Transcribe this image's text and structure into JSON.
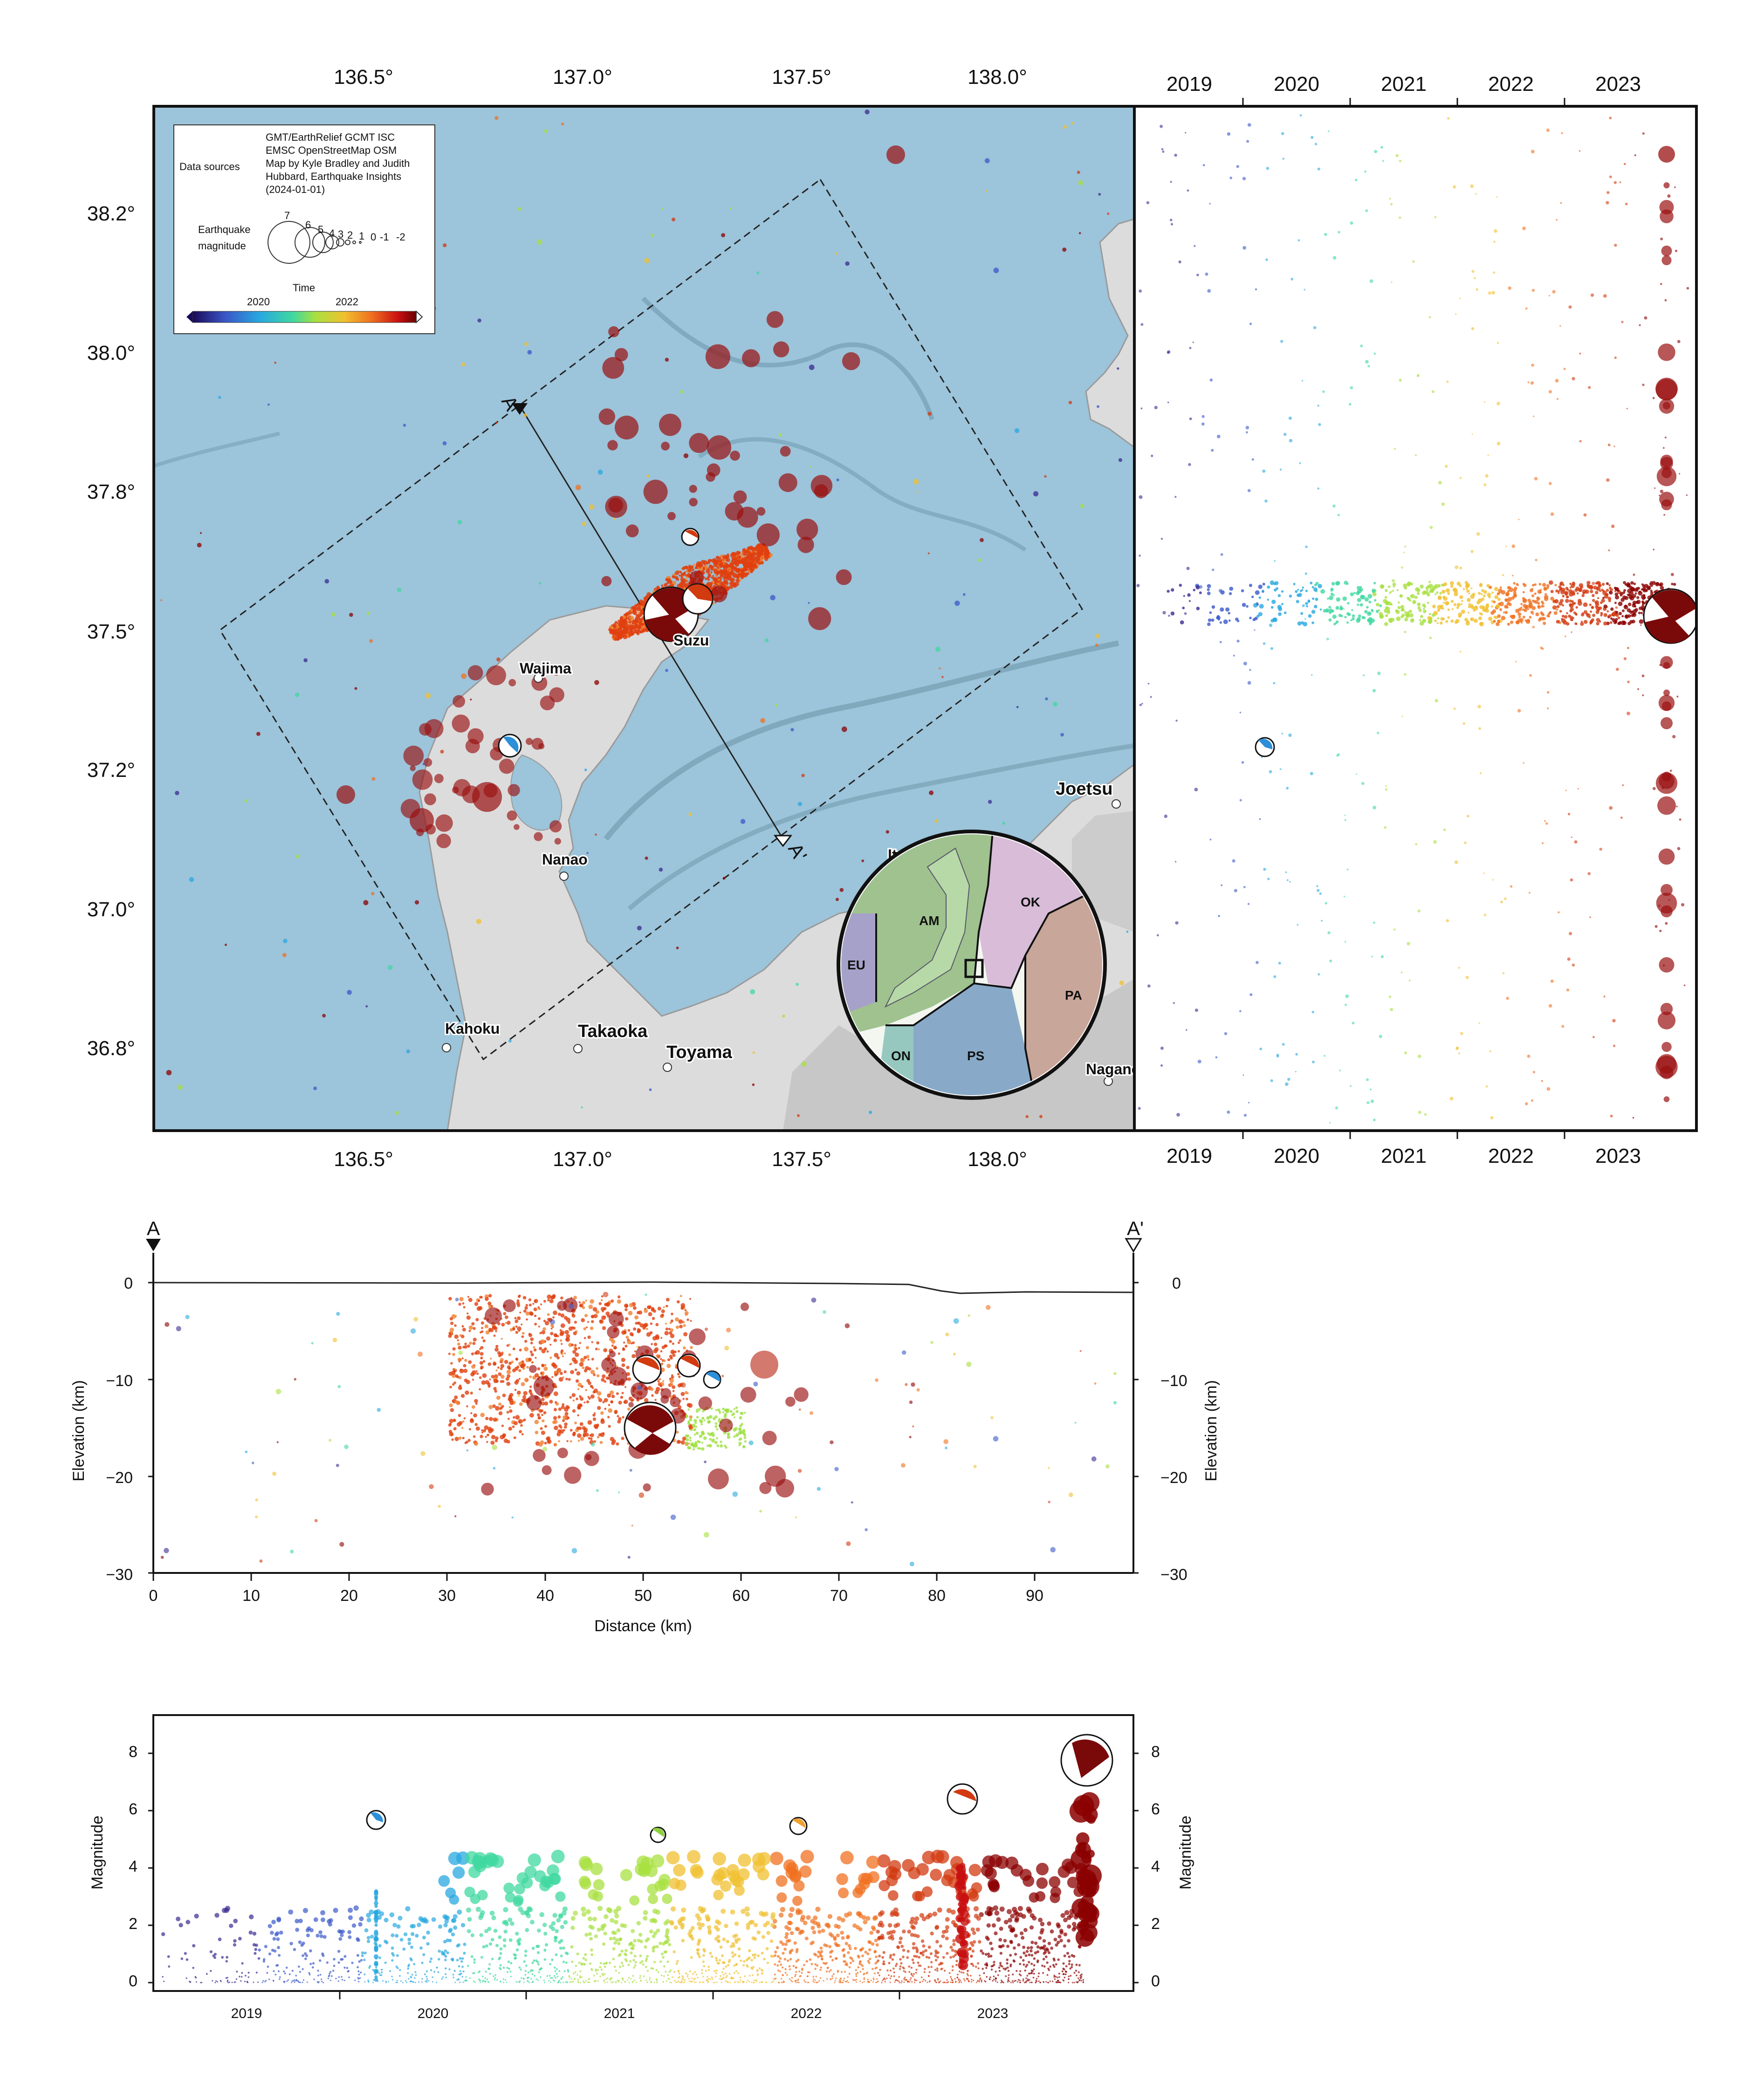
{
  "map": {
    "lon_ticks": [
      "136.5°",
      "137.0°",
      "137.5°",
      "138.0°"
    ],
    "lat_ticks": [
      "38.2°",
      "38.0°",
      "37.8°",
      "37.5°",
      "37.2°",
      "37.0°",
      "36.8°"
    ],
    "cities": [
      "Wajima",
      "Suzu",
      "Nanao",
      "Kahoku",
      "Takaoka",
      "Toyama",
      "Joetsu",
      "Ito",
      "Nagano"
    ],
    "profile_start": "A",
    "profile_end": "A'",
    "legend": {
      "sources_label": "Data sources",
      "sources_text": [
        "GMT/EarthRelief GCMT ISC",
        "EMSC OpenStreetMap OSM",
        "Map by Kyle Bradley and Judith",
        "Hubbard, Earthquake Insights",
        "(2024-01-01)"
      ],
      "magnitude_label": [
        "Earthquake",
        "magnitude"
      ],
      "magnitudes": [
        "7",
        "6",
        "5",
        "4",
        "3",
        "2",
        "1",
        "0",
        "-1",
        "-2"
      ],
      "time_label": "Time",
      "time_ticks": [
        "2020",
        "2022"
      ]
    },
    "inset_plates": [
      "AM",
      "OK",
      "EU",
      "PA",
      "ON",
      "PS"
    ],
    "colors": {
      "ocean": "#9cc4da",
      "land": "#dcdcdc",
      "recent": "#8b0000",
      "mainshock": "#7a0a0a"
    }
  },
  "timeline_panel": {
    "year_ticks": [
      "2019",
      "2020",
      "2021",
      "2022",
      "2023"
    ]
  },
  "cross_section": {
    "start_label": "A",
    "end_label": "A'",
    "y_ticks": [
      "0",
      "−10",
      "−20",
      "−30"
    ],
    "x_ticks": [
      "0",
      "10",
      "20",
      "30",
      "40",
      "50",
      "60",
      "70",
      "80",
      "90"
    ],
    "ylabel": "Elevation (km)",
    "xlabel": "Distance (km)"
  },
  "magnitude_panel": {
    "y_ticks": [
      "0",
      "2",
      "4",
      "6",
      "8"
    ],
    "ylabel": "Magnitude",
    "year_ticks": [
      "2019",
      "2020",
      "2021",
      "2022",
      "2023"
    ]
  }
}
